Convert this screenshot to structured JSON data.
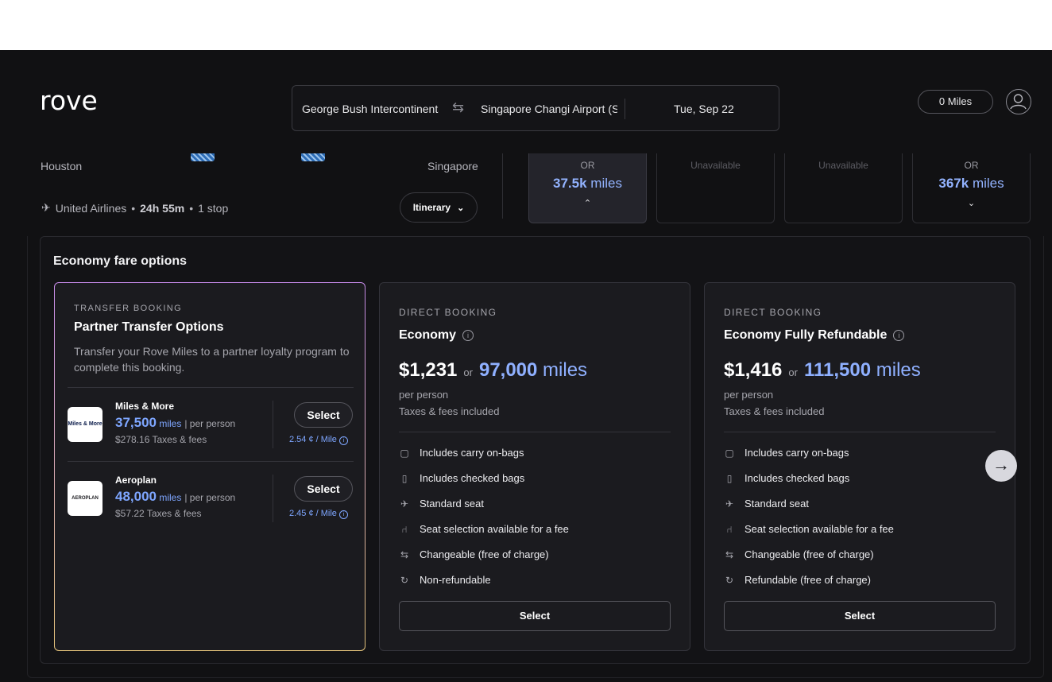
{
  "nav": {
    "logo": "rove",
    "origin": "George Bush Intercontinental Airport (IAH)",
    "swap_icon": "⇆",
    "destination": "Singapore Changi Airport (SIN)",
    "date": "Tue, Sep 22",
    "miles_balance": "0 Miles"
  },
  "flight": {
    "origin_city": "Houston",
    "destination_city": "Singapore",
    "airline": "United Airlines",
    "duration": "24h 55m",
    "stops": "1 stop",
    "itinerary_label": "Itinerary",
    "fare_columns": [
      {
        "or": "OR",
        "miles": "37.5k",
        "unit": "miles",
        "chevron": "⌃",
        "active": true
      },
      {
        "unavailable": "Unavailable"
      },
      {
        "unavailable": "Unavailable"
      },
      {
        "or": "OR",
        "miles": "367k",
        "unit": "miles",
        "chevron": "⌄"
      }
    ]
  },
  "fare_options": {
    "title": "Economy fare options",
    "transfer": {
      "eyebrow": "TRANSFER BOOKING",
      "title": "Partner Transfer Options",
      "description": "Transfer your Rove Miles to a partner loyalty program to complete this booking.",
      "partners": [
        {
          "logo_text": "Miles & More",
          "name": "Miles & More",
          "miles": "37,500",
          "unit": "miles",
          "per": "| per person",
          "taxes": "$278.16 Taxes & fees",
          "select": "Select",
          "rate": "2.54 ¢ / Mile"
        },
        {
          "logo_text": "AEROPLAN",
          "name": "Aeroplan",
          "miles": "48,000",
          "unit": "miles",
          "per": "| per person",
          "taxes": "$57.22 Taxes & fees",
          "select": "Select",
          "rate": "2.45 ¢ / Mile"
        }
      ]
    },
    "direct": [
      {
        "eyebrow": "DIRECT BOOKING",
        "title": "Economy",
        "price": "$1,231",
        "or": "or",
        "miles": "97,000",
        "unit": "miles",
        "per_person": "per person",
        "taxes": "Taxes & fees included",
        "features": [
          "Includes carry on-bags",
          "Includes checked bags",
          "Standard seat",
          "Seat selection available for a fee",
          "Changeable (free of charge)",
          "Non-refundable"
        ],
        "select": "Select"
      },
      {
        "eyebrow": "DIRECT BOOKING",
        "title": "Economy Fully Refundable",
        "price": "$1,416",
        "or": "or",
        "miles": "111,500",
        "unit": "miles",
        "per_person": "per person",
        "taxes": "Taxes & fees included",
        "features": [
          "Includes carry on-bags",
          "Includes checked bags",
          "Standard seat",
          "Seat selection available for a fee",
          "Changeable (free of charge)",
          "Refundable (free of charge)"
        ],
        "select": "Select"
      }
    ],
    "feature_icons": [
      "bag-icon",
      "luggage-icon",
      "seat-plane-icon",
      "seat-icon",
      "swap-icon",
      "refresh-icon"
    ],
    "next_arrow": "→"
  }
}
